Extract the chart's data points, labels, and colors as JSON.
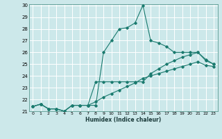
{
  "xlabel": "Humidex (Indice chaleur)",
  "bg_color": "#cce8ea",
  "grid_color": "#ffffff",
  "line_color": "#1a7a6e",
  "xlim": [
    -0.5,
    23.5
  ],
  "ylim": [
    21,
    30
  ],
  "xticks": [
    0,
    1,
    2,
    3,
    4,
    5,
    6,
    7,
    8,
    9,
    10,
    11,
    12,
    13,
    14,
    15,
    16,
    17,
    18,
    19,
    20,
    21,
    22,
    23
  ],
  "yticks": [
    21,
    22,
    23,
    24,
    25,
    26,
    27,
    28,
    29,
    30
  ],
  "series": [
    [
      21.4,
      21.6,
      21.2,
      21.2,
      21.0,
      21.5,
      21.5,
      21.5,
      21.5,
      26.0,
      27.0,
      28.0,
      28.1,
      28.5,
      30.0,
      27.0,
      26.8,
      26.5,
      26.0,
      26.0,
      26.0,
      26.0,
      25.3,
      25.0
    ],
    [
      21.4,
      21.6,
      21.2,
      21.2,
      21.0,
      21.5,
      21.5,
      21.5,
      23.5,
      23.5,
      23.5,
      23.5,
      23.5,
      23.5,
      23.5,
      24.2,
      24.6,
      25.0,
      25.3,
      25.6,
      25.8,
      26.0,
      25.4,
      25.0
    ],
    [
      21.4,
      21.6,
      21.2,
      21.2,
      21.0,
      21.5,
      21.5,
      21.5,
      21.8,
      22.2,
      22.5,
      22.8,
      23.1,
      23.4,
      23.8,
      24.0,
      24.2,
      24.4,
      24.6,
      24.8,
      25.0,
      25.2,
      24.9,
      24.8
    ]
  ]
}
